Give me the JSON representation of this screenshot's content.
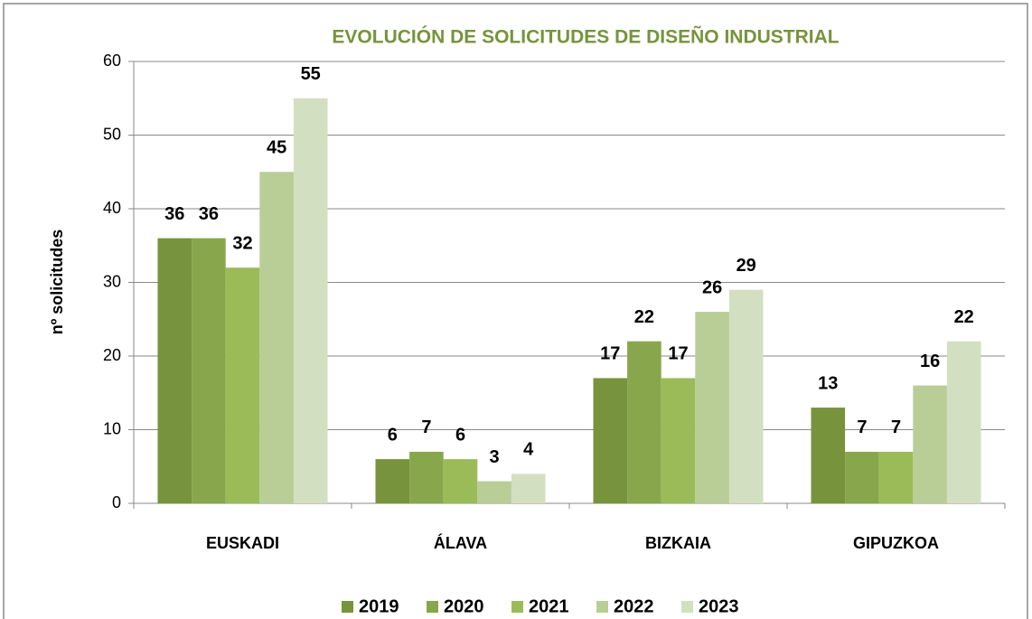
{
  "chart_data": {
    "type": "bar",
    "title": "EVOLUCIÓN DE SOLICITUDES DE DISEÑO INDUSTRIAL",
    "y_label": "nº solicitudes",
    "categories": [
      "EUSKADI",
      "ÁLAVA",
      "BIZKAIA",
      "GIPUZKOA"
    ],
    "series": [
      {
        "name": "2019",
        "color": "#77933c",
        "values": [
          36,
          6,
          17,
          13
        ]
      },
      {
        "name": "2020",
        "color": "#88a64c",
        "values": [
          36,
          7,
          22,
          7
        ]
      },
      {
        "name": "2021",
        "color": "#9bbb59",
        "values": [
          32,
          6,
          17,
          7
        ]
      },
      {
        "name": "2022",
        "color": "#b9cd96",
        "values": [
          45,
          3,
          26,
          16
        ]
      },
      {
        "name": "2023",
        "color": "#d3dfc1",
        "values": [
          55,
          4,
          29,
          22
        ]
      }
    ],
    "ylim": [
      0,
      60
    ],
    "yticks": [
      0,
      10,
      20,
      30,
      40,
      50,
      60
    ],
    "grid": true,
    "legend": "bottom"
  }
}
